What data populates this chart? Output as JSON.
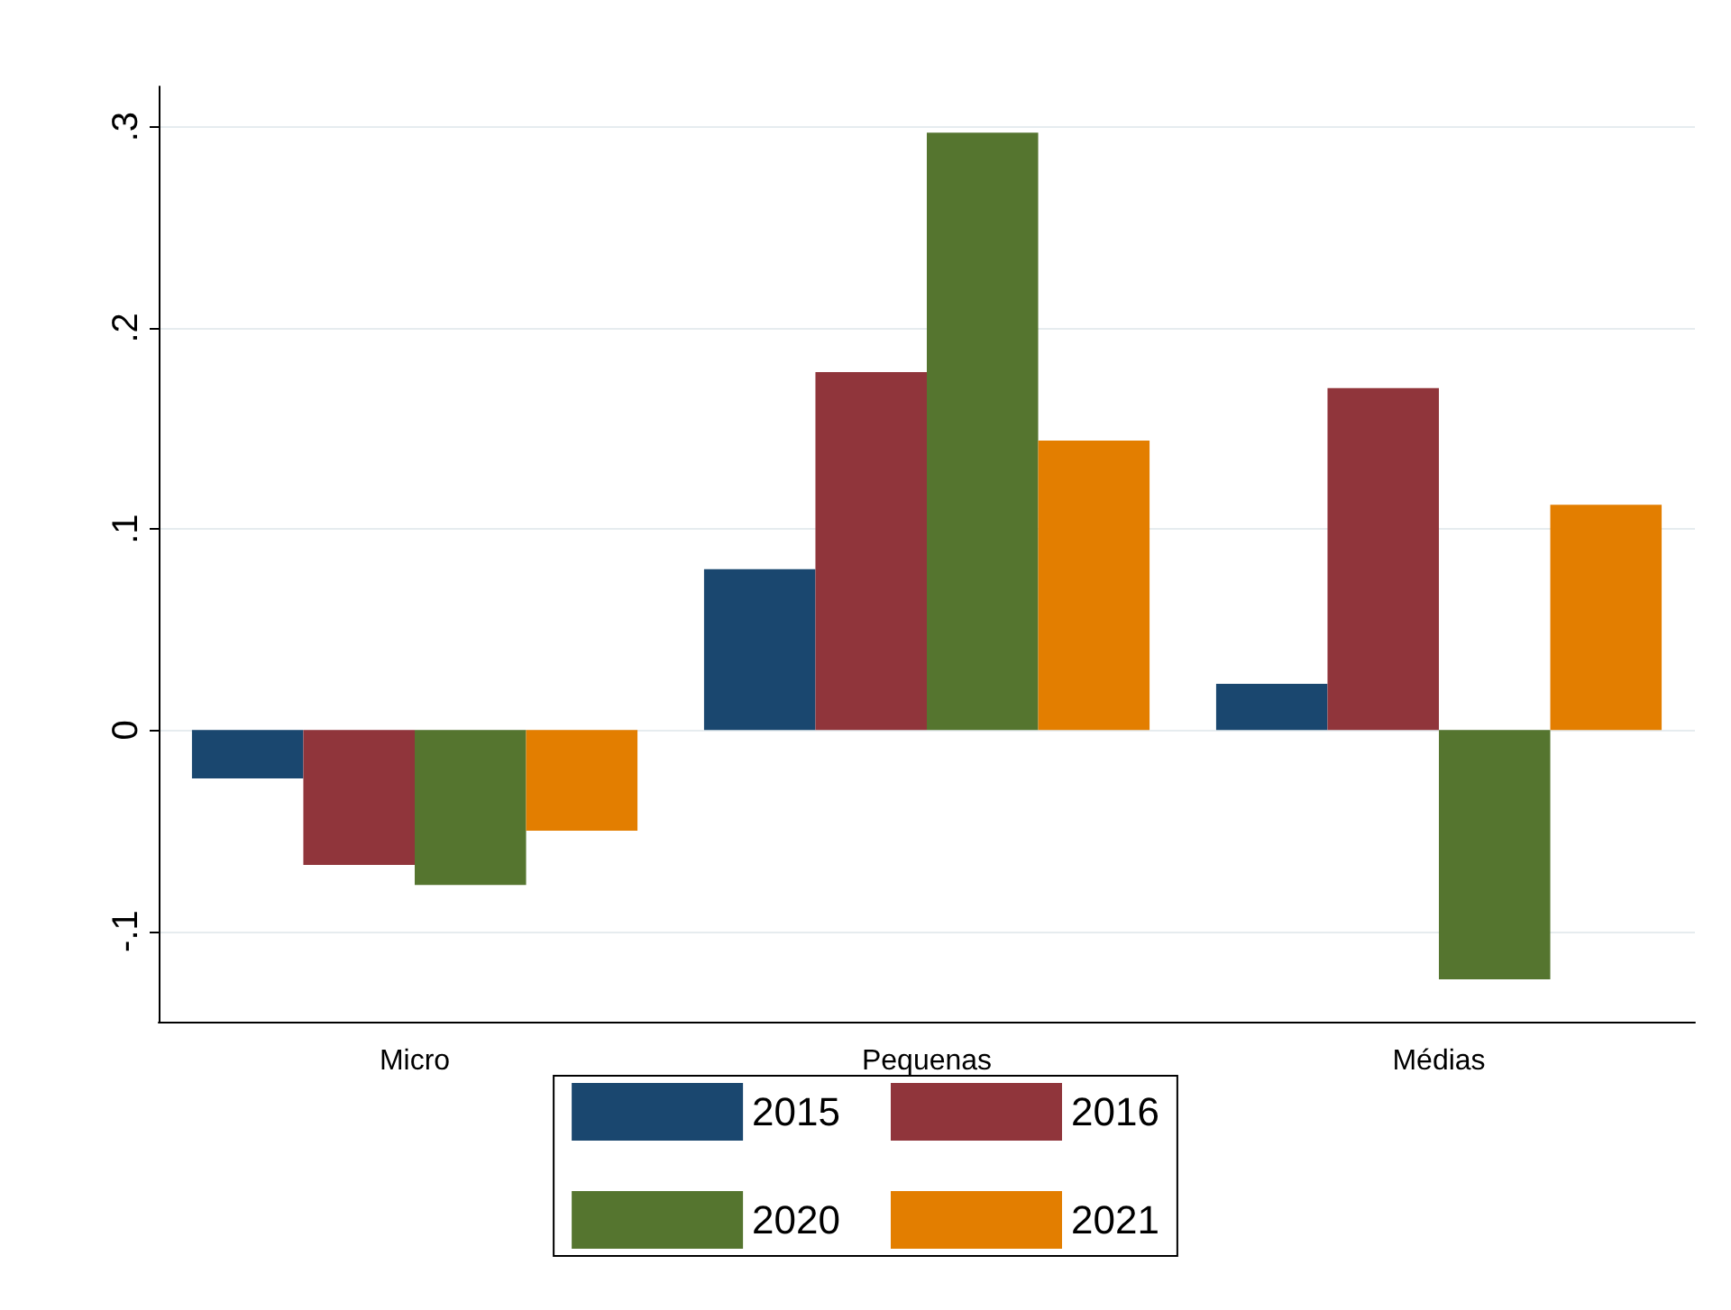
{
  "chart_data": {
    "type": "bar",
    "categories": [
      "Micro",
      "Pequenas",
      "Médias"
    ],
    "series": [
      {
        "name": "2015",
        "color": "#1a476f",
        "values": [
          -0.024,
          0.08,
          0.023
        ]
      },
      {
        "name": "2016",
        "color": "#90353b",
        "values": [
          -0.067,
          0.178,
          0.17
        ]
      },
      {
        "name": "2020",
        "color": "#55752f",
        "values": [
          -0.077,
          0.297,
          -0.124
        ]
      },
      {
        "name": "2021",
        "color": "#e37e00",
        "values": [
          -0.05,
          0.144,
          0.112
        ]
      }
    ],
    "ylim": [
      -0.145,
      0.32
    ],
    "yticks": [
      {
        "value": -0.1,
        "label": "-.1"
      },
      {
        "value": 0,
        "label": "0"
      },
      {
        "value": 0.1,
        "label": ".1"
      },
      {
        "value": 0.2,
        "label": ".2"
      },
      {
        "value": 0.3,
        "label": ".3"
      }
    ],
    "grid": "y",
    "legend": "bottom"
  }
}
